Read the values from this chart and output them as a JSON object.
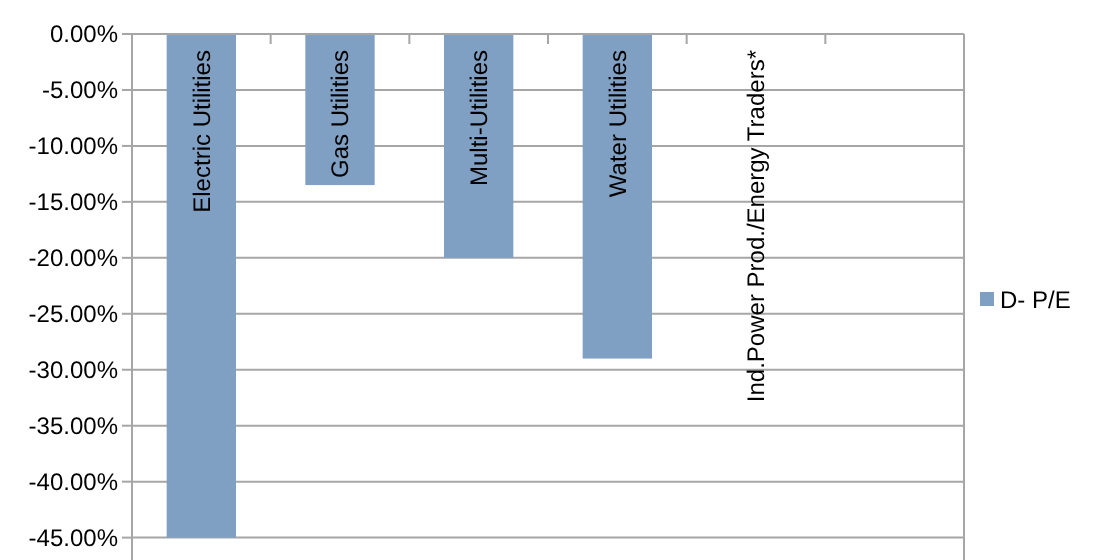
{
  "chart_data": {
    "type": "bar",
    "categories": [
      "Electric Utilities",
      "Gas Utilities",
      "Multi-Utilities",
      "Water Utilities",
      "Ind.Power Prod./Energy Traders*",
      null
    ],
    "series": [
      {
        "name": "D- P/E",
        "color": "#7f9fc3",
        "values": [
          -45,
          -13.5,
          -20,
          -29,
          null,
          null
        ]
      }
    ],
    "ylim": [
      -47,
      0
    ],
    "yticks": [
      {
        "value": 0,
        "label": "0.00%"
      },
      {
        "value": -5,
        "label": "-5.00%"
      },
      {
        "value": -10,
        "label": "-10.00%"
      },
      {
        "value": -15,
        "label": "-15.00%"
      },
      {
        "value": -20,
        "label": "-20.00%"
      },
      {
        "value": -25,
        "label": "-25.00%"
      },
      {
        "value": -30,
        "label": "-30.00%"
      },
      {
        "value": -35,
        "label": "-35.00%"
      },
      {
        "value": -40,
        "label": "-40.00%"
      },
      {
        "value": -45,
        "label": "-45.00%"
      }
    ],
    "grid": "y",
    "legend": "right"
  }
}
